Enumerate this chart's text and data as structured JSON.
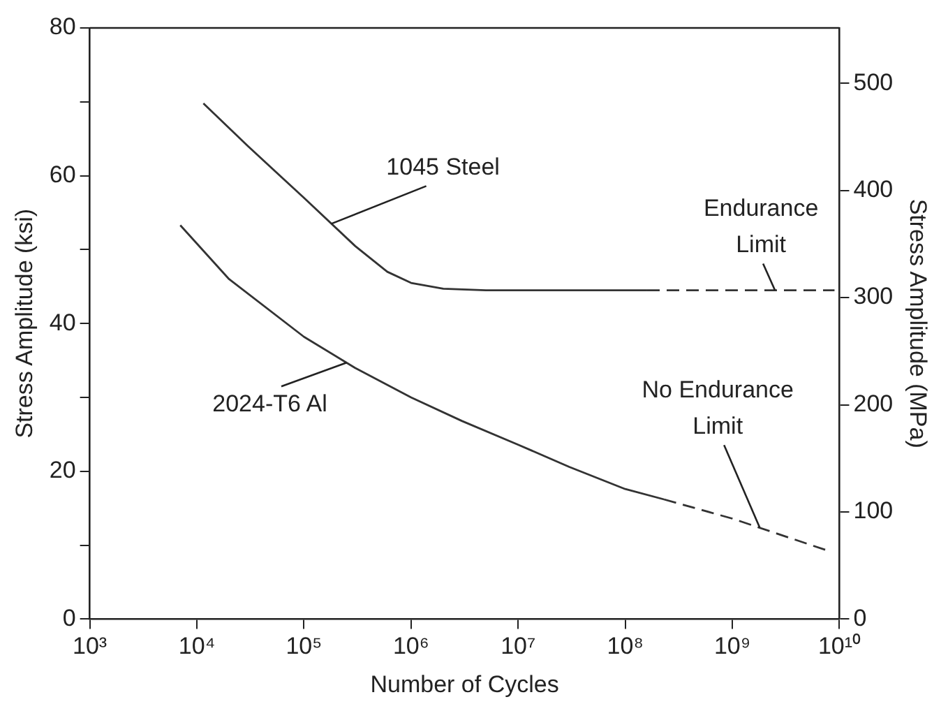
{
  "chart_data": {
    "type": "line",
    "xlabel": "Number of Cycles",
    "ylabel": "Stress Amplitude (ksi)",
    "y2label": "Stress Amplitude (MPa)",
    "log": "x",
    "xlim": [
      1000,
      10000000000
    ],
    "xticks": [
      {
        "value": 1000,
        "label": "10³"
      },
      {
        "value": 10000,
        "label": "10⁴"
      },
      {
        "value": 100000,
        "label": "10⁵"
      },
      {
        "value": 1000000,
        "label": "10⁶"
      },
      {
        "value": 10000000,
        "label": "10⁷"
      },
      {
        "value": 100000000,
        "label": "10⁸"
      },
      {
        "value": 1000000000,
        "label": "10⁹"
      },
      {
        "value": 10000000000,
        "label": "10¹⁰"
      }
    ],
    "ylim": [
      0,
      80
    ],
    "yticks": [
      0,
      {
        "value": 10,
        "label": null
      },
      20,
      {
        "value": 30,
        "label": null
      },
      40,
      {
        "value": 50,
        "label": null
      },
      60,
      {
        "value": 70,
        "label": null
      },
      80
    ],
    "y2lim": [
      0,
      551.6
    ],
    "y2ticks": [
      0,
      100,
      200,
      300,
      400,
      500
    ],
    "grid": false,
    "legend": false,
    "marker": "none",
    "series": [
      {
        "color": "#333333",
        "line_style": "solid",
        "x": [
          11500,
          30000,
          100000,
          300000,
          600000,
          1000000,
          2000000,
          5000000,
          20000000,
          160000000
        ],
        "values": [
          69.8,
          64,
          57,
          50.5,
          47,
          45.5,
          44.7,
          44.5,
          44.5,
          44.5
        ]
      },
      {
        "color": "#333333",
        "line_style": "dashed",
        "x": [
          160000000,
          9000000000
        ],
        "values": [
          44.5,
          44.5
        ]
      },
      {
        "color": "#333333",
        "line_style": "solid",
        "x": [
          7000,
          20000,
          100000,
          300000,
          1000000,
          3000000,
          10000000,
          30000000,
          100000000,
          230000000
        ],
        "values": [
          53.3,
          46,
          38.2,
          34,
          30,
          26.8,
          23.6,
          20.6,
          17.6,
          16.2
        ]
      },
      {
        "color": "#333333",
        "line_style": "dashed",
        "x": [
          230000000,
          1000000000,
          8000000000
        ],
        "values": [
          16.2,
          13.6,
          9.2
        ]
      }
    ],
    "annotations": [
      {
        "text": "1045 Steel",
        "x": 180000,
        "y": 53.5
      },
      {
        "text": "Endurance Limit",
        "x": 2500000000,
        "y": 44.5
      },
      {
        "text": "No Endurance Limit",
        "x": 1800000000,
        "y": 12.4
      },
      {
        "text": "2024-T6 Al",
        "x": 250000,
        "y": 34.7
      }
    ]
  }
}
